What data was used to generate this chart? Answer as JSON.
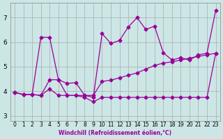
{
  "xlabel": "Windchill (Refroidissement éolien,°C)",
  "x": [
    0,
    1,
    2,
    3,
    4,
    5,
    6,
    7,
    8,
    9,
    10,
    11,
    12,
    13,
    14,
    15,
    16,
    17,
    18,
    19,
    20,
    21,
    22,
    23
  ],
  "y_line": [
    3.95,
    3.87,
    3.87,
    3.83,
    4.1,
    3.83,
    3.83,
    3.83,
    3.83,
    3.83,
    4.4,
    4.45,
    4.55,
    4.65,
    4.75,
    4.9,
    5.05,
    5.15,
    5.2,
    5.27,
    5.35,
    5.42,
    5.48,
    5.55
  ],
  "y_upper": [
    3.95,
    3.87,
    3.87,
    6.2,
    6.2,
    4.47,
    4.32,
    4.35,
    3.83,
    3.75,
    6.35,
    5.95,
    6.07,
    6.62,
    7.0,
    6.52,
    6.65,
    5.57,
    5.27,
    5.37,
    5.27,
    5.48,
    5.55,
    7.3
  ],
  "y_lower": [
    3.95,
    3.87,
    3.87,
    3.83,
    4.47,
    4.47,
    3.83,
    3.83,
    3.75,
    3.57,
    3.75,
    3.75,
    3.75,
    3.75,
    3.75,
    3.75,
    3.75,
    3.75,
    3.75,
    3.75,
    3.75,
    3.75,
    3.75,
    5.55
  ],
  "line_color": "#990099",
  "bg_color": "#cce6e6",
  "plot_bg": "#cce6e6",
  "grid_color": "#aaaaaa",
  "ylim": [
    2.8,
    7.6
  ],
  "yticks": [
    3,
    4,
    5,
    6,
    7
  ],
  "xlim": [
    -0.5,
    23.5
  ]
}
